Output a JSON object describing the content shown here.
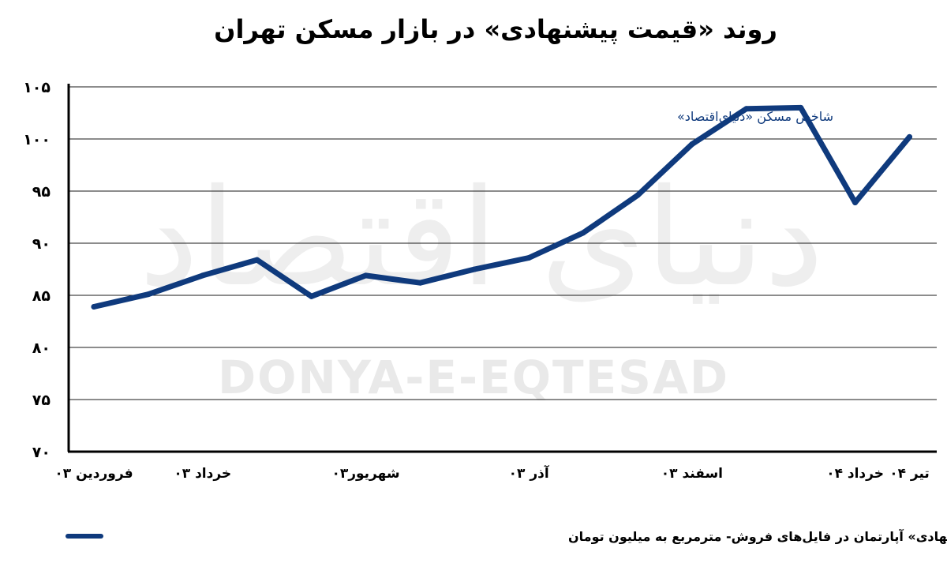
{
  "chart_data": {
    "type": "line",
    "title": "روند «قیمت پیشنهادی» در بازار مسکن تهران",
    "annotation": "شاخص مسکن «دنیای‌اقتصاد»",
    "ylim": [
      70,
      105
    ],
    "yticks": [
      70,
      75,
      80,
      85,
      90,
      95,
      100,
      105
    ],
    "ytick_labels": [
      "۷۰",
      "۷۵",
      "۸۰",
      "۸۵",
      "۹۰",
      "۹۵",
      "۱۰۰",
      "۱۰۵"
    ],
    "x_tick_labels": [
      {
        "index": 0,
        "label": "فروردین ۰۳"
      },
      {
        "index": 2,
        "label": "خرداد ۰۳"
      },
      {
        "index": 5,
        "label": "شهریور۰۳"
      },
      {
        "index": 8,
        "label": "آذر ۰۳"
      },
      {
        "index": 11,
        "label": "اسفند ۰۳"
      },
      {
        "index": 14,
        "label": "خرداد ۰۴"
      },
      {
        "index": 15,
        "label": "تیر ۰۴"
      }
    ],
    "grid": true,
    "series": [
      {
        "name": "میانگین «قیمت پیشنهادی» آپارتمان در فایل‌های فروش- مترمربع به میلیون تومان",
        "color": "#0f3a7d",
        "values": [
          83.9,
          85.1,
          86.9,
          88.4,
          84.9,
          86.9,
          86.2,
          87.5,
          88.6,
          91.0,
          94.6,
          99.5,
          102.9,
          103.0,
          93.9,
          100.2
        ]
      }
    ],
    "legend_position": "bottom-left"
  },
  "watermark": {
    "latin": "DONYA-E-EQTESAD",
    "arabic": "دنیای اقتصاد"
  }
}
